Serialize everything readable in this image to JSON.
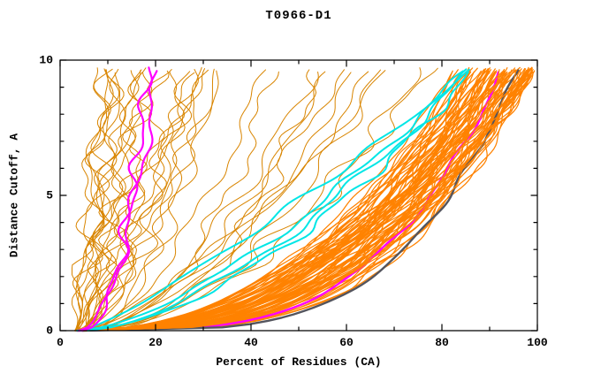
{
  "chart_data": {
    "type": "line",
    "title": "T0966-D1",
    "xlabel": "Percent of Residues (CA)",
    "ylabel": "Distance Cutoff, A",
    "xlim": [
      0,
      100
    ],
    "ylim": [
      0,
      10
    ],
    "x_major_ticks": [
      0,
      20,
      40,
      60,
      80,
      100
    ],
    "x_major_tick_labels": [
      "0",
      "20",
      "40",
      "60",
      "80",
      "100"
    ],
    "x_minor_ticks": [
      10,
      30,
      50,
      70,
      90
    ],
    "y_major_ticks": [
      0,
      5,
      10
    ],
    "y_major_tick_labels": [
      "0",
      "5",
      "10"
    ],
    "y_minor_ticks": [
      1,
      2,
      3,
      4,
      6,
      7,
      8,
      9
    ],
    "grid": false,
    "legend": "none",
    "background_color": "#ffffff",
    "frame_color": "#000000",
    "description": "Cumulative model-accuracy curves: percent of CA residues (x) within a distance cutoff in Angstroms (y). Orange = server/model pool, magenta/cyan/gray = highlighted models.",
    "curve_y_top": 9.65,
    "families": [
      {
        "name": "models-low-quality",
        "color": "#d98500",
        "width": 1.0,
        "count": 24,
        "seed": 11,
        "x_start": [
          3,
          6
        ],
        "x_at_top": [
          8,
          34
        ],
        "bias": "low",
        "shape_exp": [
          0.45,
          1.0
        ],
        "wobble": [
          1.5,
          4.5
        ]
      },
      {
        "name": "models-mid-quality",
        "color": "#d98500",
        "width": 1.0,
        "count": 12,
        "seed": 22,
        "x_start": [
          3,
          6
        ],
        "x_at_top": [
          36,
          78
        ],
        "bias": "none",
        "shape_exp": [
          0.38,
          0.7
        ],
        "wobble": [
          1.5,
          3.5
        ]
      },
      {
        "name": "models-high-a",
        "color": "#ff8200",
        "width": 1.25,
        "count": 48,
        "seed": 33,
        "x_start": [
          3,
          6
        ],
        "x_at_top": [
          82,
          99
        ],
        "bias": "high",
        "shape_exp": [
          0.28,
          0.5
        ],
        "wobble": [
          0.8,
          2.2
        ]
      },
      {
        "name": "highlight-magenta-best",
        "color": "#ff00ff",
        "width": 2.4,
        "count": 1,
        "seed": 44,
        "x_start": [
          3,
          5
        ],
        "x_at_top": [
          92,
          93
        ],
        "bias": "none",
        "shape_exp": [
          0.26,
          0.3
        ],
        "wobble": [
          0.5,
          1.0
        ]
      },
      {
        "name": "highlight-gray-best",
        "color": "#54555e",
        "width": 2.4,
        "count": 1,
        "seed": 55,
        "x_start": [
          3,
          5
        ],
        "x_at_top": [
          95,
          96
        ],
        "bias": "none",
        "shape_exp": [
          0.25,
          0.28
        ],
        "wobble": [
          0.4,
          0.9
        ]
      },
      {
        "name": "models-high-b",
        "color": "#ff8200",
        "width": 1.2,
        "count": 30,
        "seed": 66,
        "x_start": [
          3,
          6
        ],
        "x_at_top": [
          84,
          99
        ],
        "bias": "high",
        "shape_exp": [
          0.3,
          0.5
        ],
        "wobble": [
          0.8,
          2.0
        ]
      },
      {
        "name": "highlight-cyan",
        "color": "#00e6e6",
        "width": 2.0,
        "count": 4,
        "seed": 77,
        "x_start": [
          3,
          6
        ],
        "x_at_top": [
          84,
          90
        ],
        "bias": "none",
        "shape_exp": [
          0.55,
          0.85
        ],
        "wobble": [
          1.0,
          2.5
        ]
      },
      {
        "name": "highlight-magenta-low",
        "color": "#ff00ff",
        "width": 2.2,
        "count": 2,
        "seed": 88,
        "x_start": [
          3,
          6
        ],
        "x_at_top": [
          15,
          23
        ],
        "bias": "none",
        "shape_exp": [
          0.42,
          0.55
        ],
        "wobble": [
          1.2,
          2.2
        ]
      }
    ]
  }
}
